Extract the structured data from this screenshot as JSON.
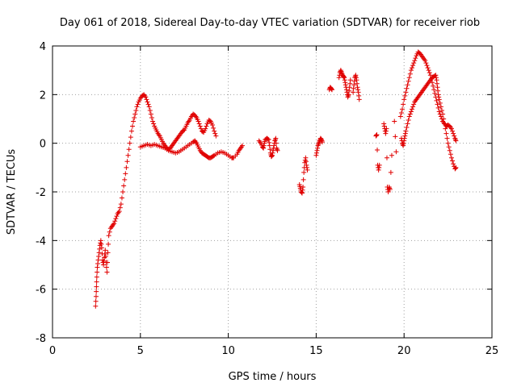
{
  "chart_data": {
    "type": "scatter",
    "title": "Day 061 of 2018, Sidereal Day-to-day VTEC variation (SDTVAR) for receiver riob",
    "xlabel": "GPS time / hours",
    "ylabel": "SDTVAR / TECUs",
    "xlim": [
      0,
      25
    ],
    "ylim": [
      -8,
      4
    ],
    "xticks": [
      0,
      5,
      10,
      15,
      20,
      25
    ],
    "yticks": [
      -8,
      -6,
      -4,
      -2,
      0,
      2,
      4
    ],
    "xtick_labels": [
      "0",
      "5",
      "10",
      "15",
      "20",
      "25"
    ],
    "ytick_labels": [
      "-8",
      "-6",
      "-4",
      "-2",
      "0",
      "2",
      "4"
    ],
    "grid": true,
    "marker": "+",
    "color": "#e00000",
    "series": [
      {
        "name": "SDTVAR",
        "segments": [
          [
            [
              2.45,
              -6.7
            ],
            [
              2.48,
              -6.3
            ],
            [
              2.5,
              -5.9
            ],
            [
              2.52,
              -5.5
            ],
            [
              2.55,
              -5.1
            ],
            [
              2.6,
              -4.8
            ],
            [
              2.65,
              -4.5
            ],
            [
              2.7,
              -4.2
            ],
            [
              2.75,
              -4.0
            ],
            [
              2.8,
              -4.3
            ],
            [
              2.85,
              -4.8
            ],
            [
              2.9,
              -5.0
            ],
            [
              2.95,
              -4.7
            ],
            [
              3.0,
              -4.4
            ],
            [
              3.05,
              -4.9
            ],
            [
              3.1,
              -5.3
            ],
            [
              3.15,
              -4.5
            ],
            [
              3.2,
              -3.8
            ],
            [
              3.3,
              -3.5
            ],
            [
              3.4,
              -3.4
            ],
            [
              3.5,
              -3.3
            ],
            [
              3.6,
              -3.1
            ],
            [
              3.7,
              -2.9
            ],
            [
              3.8,
              -2.8
            ],
            [
              3.9,
              -2.5
            ],
            [
              4.0,
              -2.0
            ],
            [
              4.1,
              -1.5
            ],
            [
              4.2,
              -1.0
            ],
            [
              4.3,
              -0.5
            ],
            [
              4.4,
              0.0
            ],
            [
              4.5,
              0.5
            ],
            [
              4.6,
              0.9
            ],
            [
              4.7,
              1.2
            ],
            [
              4.8,
              1.5
            ],
            [
              4.9,
              1.7
            ],
            [
              5.0,
              1.85
            ],
            [
              5.1,
              1.95
            ],
            [
              5.2,
              2.0
            ],
            [
              5.3,
              1.9
            ],
            [
              5.4,
              1.7
            ],
            [
              5.5,
              1.5
            ],
            [
              5.6,
              1.2
            ],
            [
              5.7,
              0.9
            ],
            [
              5.8,
              0.7
            ],
            [
              5.9,
              0.55
            ],
            [
              6.0,
              0.4
            ],
            [
              6.1,
              0.3
            ],
            [
              6.2,
              0.15
            ],
            [
              6.3,
              0.0
            ],
            [
              6.4,
              -0.1
            ],
            [
              6.5,
              -0.2
            ],
            [
              6.6,
              -0.25
            ],
            [
              6.7,
              -0.2
            ],
            [
              6.8,
              -0.1
            ],
            [
              6.9,
              0.0
            ],
            [
              7.0,
              0.1
            ],
            [
              7.1,
              0.2
            ],
            [
              7.2,
              0.3
            ],
            [
              7.3,
              0.4
            ],
            [
              7.4,
              0.5
            ],
            [
              7.5,
              0.55
            ],
            [
              7.6,
              0.7
            ],
            [
              7.7,
              0.85
            ],
            [
              7.8,
              0.95
            ],
            [
              7.9,
              1.1
            ],
            [
              8.0,
              1.2
            ],
            [
              8.1,
              1.15
            ],
            [
              8.2,
              1.05
            ],
            [
              8.3,
              0.9
            ],
            [
              8.4,
              0.7
            ],
            [
              8.5,
              0.5
            ],
            [
              8.6,
              0.45
            ],
            [
              8.7,
              0.6
            ],
            [
              8.8,
              0.8
            ],
            [
              8.9,
              0.95
            ],
            [
              9.0,
              0.9
            ],
            [
              9.1,
              0.75
            ],
            [
              9.2,
              0.5
            ],
            [
              9.3,
              0.3
            ]
          ],
          [
            [
              5.0,
              -0.15
            ],
            [
              5.2,
              -0.1
            ],
            [
              5.4,
              -0.05
            ],
            [
              5.6,
              -0.1
            ],
            [
              5.8,
              -0.05
            ],
            [
              6.0,
              -0.1
            ],
            [
              6.2,
              -0.15
            ],
            [
              6.4,
              -0.2
            ],
            [
              6.6,
              -0.3
            ],
            [
              6.8,
              -0.35
            ],
            [
              7.0,
              -0.4
            ],
            [
              7.2,
              -0.35
            ],
            [
              7.4,
              -0.25
            ],
            [
              7.6,
              -0.15
            ],
            [
              7.8,
              -0.05
            ],
            [
              8.0,
              0.05
            ],
            [
              8.1,
              0.1
            ],
            [
              8.2,
              0.0
            ],
            [
              8.3,
              -0.15
            ],
            [
              8.4,
              -0.3
            ],
            [
              8.5,
              -0.4
            ],
            [
              8.6,
              -0.45
            ],
            [
              8.7,
              -0.5
            ],
            [
              8.8,
              -0.55
            ],
            [
              8.9,
              -0.6
            ],
            [
              9.0,
              -0.6
            ],
            [
              9.1,
              -0.55
            ],
            [
              9.2,
              -0.5
            ],
            [
              9.4,
              -0.4
            ],
            [
              9.6,
              -0.35
            ],
            [
              9.8,
              -0.4
            ],
            [
              10.0,
              -0.5
            ],
            [
              10.2,
              -0.6
            ],
            [
              10.3,
              -0.6
            ],
            [
              10.5,
              -0.45
            ],
            [
              10.6,
              -0.3
            ],
            [
              10.7,
              -0.2
            ],
            [
              10.8,
              -0.1
            ]
          ],
          [
            [
              11.75,
              0.1
            ],
            [
              11.85,
              0.0
            ],
            [
              11.95,
              -0.15
            ],
            [
              12.0,
              -0.2
            ],
            [
              12.05,
              0.0
            ],
            [
              12.1,
              0.15
            ],
            [
              12.2,
              0.2
            ],
            [
              12.3,
              0.15
            ],
            [
              12.35,
              -0.1
            ],
            [
              12.4,
              -0.4
            ],
            [
              12.45,
              -0.55
            ],
            [
              12.5,
              -0.5
            ],
            [
              12.55,
              -0.3
            ],
            [
              12.6,
              -0.1
            ],
            [
              12.65,
              0.1
            ],
            [
              12.7,
              0.2
            ],
            [
              12.75,
              -0.2
            ],
            [
              12.8,
              -0.3
            ]
          ],
          [
            [
              14.05,
              -1.7
            ],
            [
              14.1,
              -1.85
            ],
            [
              14.15,
              -2.0
            ],
            [
              14.2,
              -2.05
            ],
            [
              14.25,
              -1.8
            ],
            [
              14.3,
              -1.2
            ],
            [
              14.35,
              -0.8
            ],
            [
              14.4,
              -0.6
            ],
            [
              14.45,
              -0.9
            ],
            [
              14.5,
              -1.1
            ]
          ],
          [
            [
              15.0,
              -0.5
            ],
            [
              15.05,
              -0.3
            ],
            [
              15.1,
              -0.1
            ],
            [
              15.15,
              0.0
            ],
            [
              15.2,
              0.1
            ],
            [
              15.25,
              0.2
            ],
            [
              15.3,
              0.15
            ],
            [
              15.35,
              0.05
            ]
          ],
          [
            [
              15.75,
              2.2
            ],
            [
              15.8,
              2.3
            ],
            [
              15.85,
              2.25
            ],
            [
              15.9,
              2.2
            ]
          ],
          [
            [
              16.3,
              2.7
            ],
            [
              16.35,
              2.9
            ],
            [
              16.4,
              3.0
            ],
            [
              16.45,
              2.9
            ],
            [
              16.5,
              2.8
            ],
            [
              16.55,
              2.75
            ],
            [
              16.6,
              2.7
            ],
            [
              16.65,
              2.5
            ],
            [
              16.7,
              2.3
            ],
            [
              16.75,
              2.1
            ],
            [
              16.8,
              1.9
            ],
            [
              16.85,
              2.0
            ],
            [
              16.9,
              2.3
            ],
            [
              16.95,
              2.6
            ]
          ],
          [
            [
              17.1,
              2.1
            ],
            [
              17.15,
              2.4
            ],
            [
              17.2,
              2.7
            ],
            [
              17.25,
              2.8
            ],
            [
              17.3,
              2.6
            ],
            [
              17.35,
              2.3
            ],
            [
              17.4,
              2.1
            ],
            [
              17.45,
              1.8
            ]
          ],
          [
            [
              18.4,
              0.3
            ],
            [
              18.45,
              0.35
            ],
            [
              18.5,
              -0.9
            ],
            [
              18.55,
              -1.1
            ],
            [
              18.6,
              -0.9
            ]
          ],
          [
            [
              18.85,
              0.8
            ],
            [
              18.9,
              0.6
            ],
            [
              18.95,
              0.4
            ],
            [
              19.0,
              0.6
            ],
            [
              19.05,
              -1.8
            ],
            [
              19.1,
              -2.0
            ],
            [
              19.15,
              -1.8
            ],
            [
              19.2,
              -1.9
            ],
            [
              19.3,
              -0.5
            ]
          ],
          [
            [
              19.45,
              0.9
            ],
            [
              19.55,
              -0.35
            ]
          ],
          [
            [
              19.85,
              0.2
            ],
            [
              19.9,
              0.0
            ],
            [
              19.95,
              -0.1
            ],
            [
              20.0,
              0.1
            ],
            [
              20.05,
              0.3
            ],
            [
              20.1,
              0.5
            ],
            [
              20.2,
              0.8
            ],
            [
              20.3,
              1.1
            ],
            [
              20.4,
              1.3
            ],
            [
              20.5,
              1.5
            ],
            [
              20.6,
              1.7
            ],
            [
              20.7,
              1.8
            ],
            [
              20.8,
              1.9
            ],
            [
              20.9,
              2.0
            ],
            [
              21.0,
              2.1
            ],
            [
              21.1,
              2.2
            ],
            [
              21.2,
              2.3
            ],
            [
              21.3,
              2.4
            ],
            [
              21.4,
              2.5
            ],
            [
              21.5,
              2.6
            ],
            [
              21.6,
              2.7
            ],
            [
              21.7,
              2.75
            ],
            [
              21.8,
              2.8
            ],
            [
              21.85,
              2.6
            ],
            [
              21.9,
              2.3
            ],
            [
              21.95,
              2.0
            ],
            [
              22.0,
              1.8
            ],
            [
              22.1,
              1.5
            ],
            [
              22.2,
              1.2
            ],
            [
              22.3,
              0.8
            ],
            [
              22.4,
              0.4
            ],
            [
              22.5,
              0.0
            ],
            [
              22.6,
              -0.3
            ],
            [
              22.7,
              -0.6
            ],
            [
              22.8,
              -0.85
            ],
            [
              22.9,
              -1.05
            ],
            [
              22.95,
              -1.0
            ]
          ],
          [
            [
              19.8,
              1.1
            ],
            [
              19.9,
              1.4
            ],
            [
              20.0,
              1.8
            ],
            [
              20.1,
              2.1
            ],
            [
              20.2,
              2.4
            ],
            [
              20.3,
              2.7
            ],
            [
              20.4,
              3.0
            ],
            [
              20.5,
              3.2
            ],
            [
              20.6,
              3.4
            ],
            [
              20.7,
              3.6
            ],
            [
              20.8,
              3.75
            ],
            [
              20.9,
              3.7
            ],
            [
              21.0,
              3.6
            ],
            [
              21.1,
              3.5
            ],
            [
              21.2,
              3.4
            ],
            [
              21.3,
              3.2
            ],
            [
              21.4,
              3.0
            ],
            [
              21.5,
              2.8
            ],
            [
              21.6,
              2.5
            ],
            [
              21.7,
              2.2
            ],
            [
              21.8,
              1.9
            ],
            [
              21.9,
              1.6
            ],
            [
              22.0,
              1.3
            ],
            [
              22.1,
              1.1
            ],
            [
              22.2,
              0.9
            ],
            [
              22.3,
              0.8
            ],
            [
              22.4,
              0.7
            ],
            [
              22.5,
              0.75
            ],
            [
              22.6,
              0.7
            ],
            [
              22.7,
              0.6
            ],
            [
              22.8,
              0.4
            ],
            [
              22.9,
              0.2
            ],
            [
              22.95,
              0.1
            ]
          ]
        ]
      }
    ]
  }
}
